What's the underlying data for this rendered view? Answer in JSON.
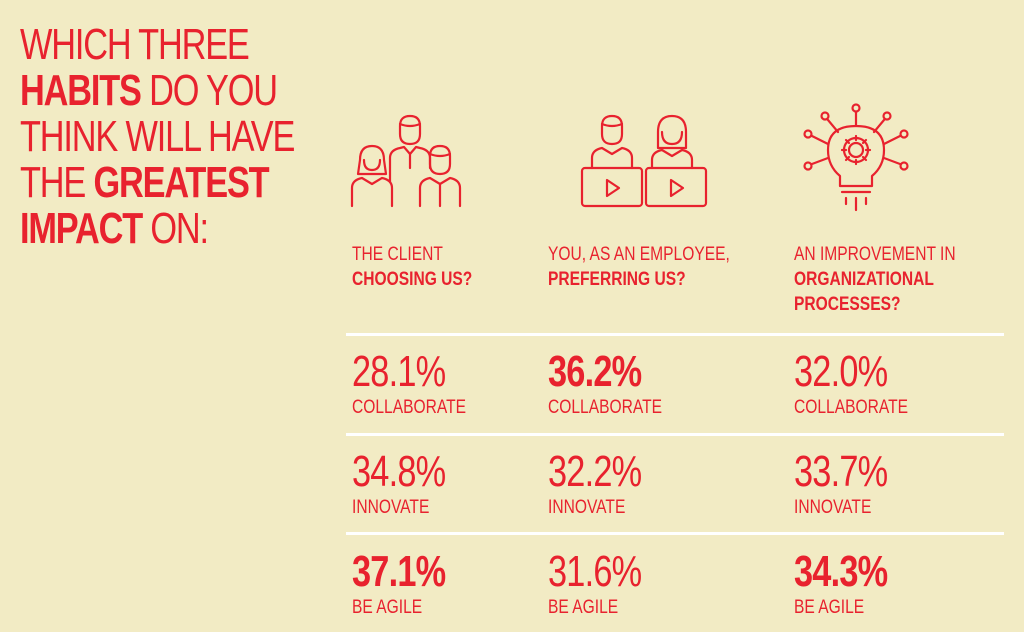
{
  "headline": {
    "l1": "WHICH THREE",
    "l2_bold": "HABITS",
    "l2_rest": " DO YOU",
    "l3": "THINK WILL HAVE",
    "l4_pre": "THE ",
    "l4_bold": "GREATEST",
    "l5_bold": "IMPACT",
    "l5_rest": " ON:"
  },
  "icons": [
    "people-group-icon",
    "video-call-icon",
    "lightbulb-gear-icon"
  ],
  "accent_color": "#e8222e",
  "background_color": "#f2ebc4",
  "columns": [
    {
      "line1": "THE CLIENT",
      "line2": "CHOOSING US?",
      "line3": ""
    },
    {
      "line1": "YOU, AS AN EMPLOYEE,",
      "line2": "PREFERRING US?",
      "line3": ""
    },
    {
      "line1": "AN IMPROVEMENT IN",
      "line2": "ORGANIZATIONAL",
      "line3": "PROCESSES?"
    }
  ],
  "rows": [
    {
      "label": "COLLABORATE",
      "values": [
        "28.1%",
        "36.2%",
        "32.0%"
      ],
      "bold": [
        false,
        true,
        false
      ]
    },
    {
      "label": "INNOVATE",
      "values": [
        "34.8%",
        "32.2%",
        "33.7%"
      ],
      "bold": [
        false,
        false,
        false
      ]
    },
    {
      "label": "BE AGILE",
      "values": [
        "37.1%",
        "31.6%",
        "34.3%"
      ],
      "bold": [
        true,
        false,
        true
      ]
    }
  ]
}
